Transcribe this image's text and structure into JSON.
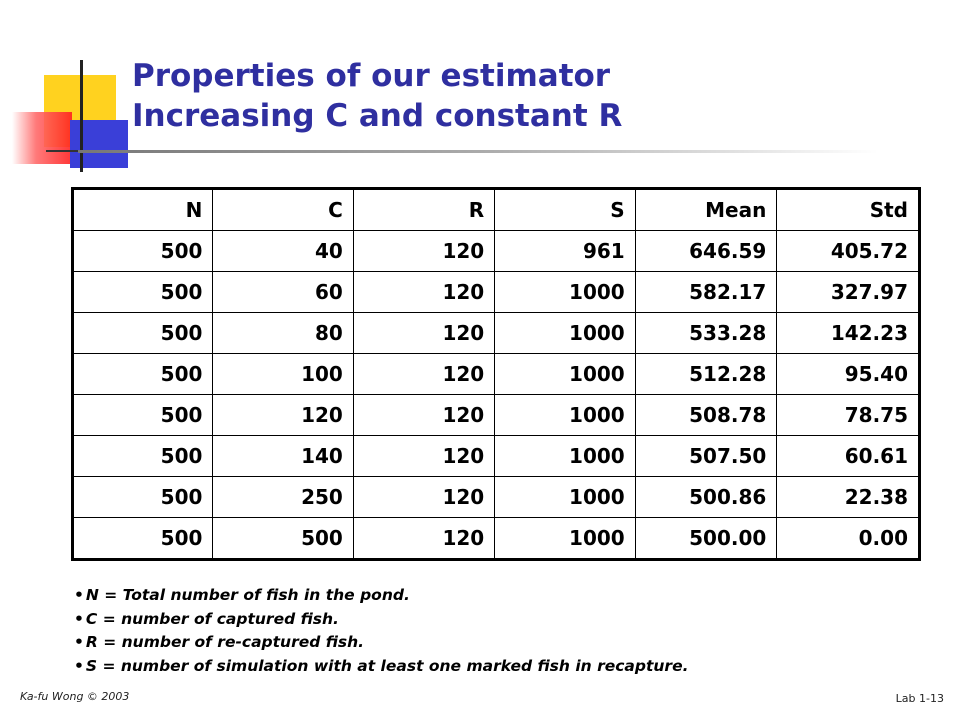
{
  "slide": {
    "title_line1": "Properties of our estimator",
    "title_line2": "Increasing C and constant R"
  },
  "table": {
    "headers": [
      "N",
      "C",
      "R",
      "S",
      "Mean",
      "Std"
    ],
    "rows": [
      [
        "500",
        "40",
        "120",
        "961",
        "646.59",
        "405.72"
      ],
      [
        "500",
        "60",
        "120",
        "1000",
        "582.17",
        "327.97"
      ],
      [
        "500",
        "80",
        "120",
        "1000",
        "533.28",
        "142.23"
      ],
      [
        "500",
        "100",
        "120",
        "1000",
        "512.28",
        "95.40"
      ],
      [
        "500",
        "120",
        "120",
        "1000",
        "508.78",
        "78.75"
      ],
      [
        "500",
        "140",
        "120",
        "1000",
        "507.50",
        "60.61"
      ],
      [
        "500",
        "250",
        "120",
        "1000",
        "500.86",
        "22.38"
      ],
      [
        "500",
        "500",
        "120",
        "1000",
        "500.00",
        "0.00"
      ]
    ]
  },
  "notes": [
    "N = Total number of fish in the pond.",
    "C = number of captured fish.",
    "R = number of re-captured fish.",
    "S = number of simulation with at least one marked fish in recapture."
  ],
  "footer": {
    "left": "Ka-fu Wong © 2003",
    "right": "Lab 1-13"
  },
  "colors": {
    "title": "#2f2fa0",
    "logo_yellow": "#ffd21f",
    "logo_red": "#ff2020",
    "logo_blue": "#3a3fd8"
  }
}
